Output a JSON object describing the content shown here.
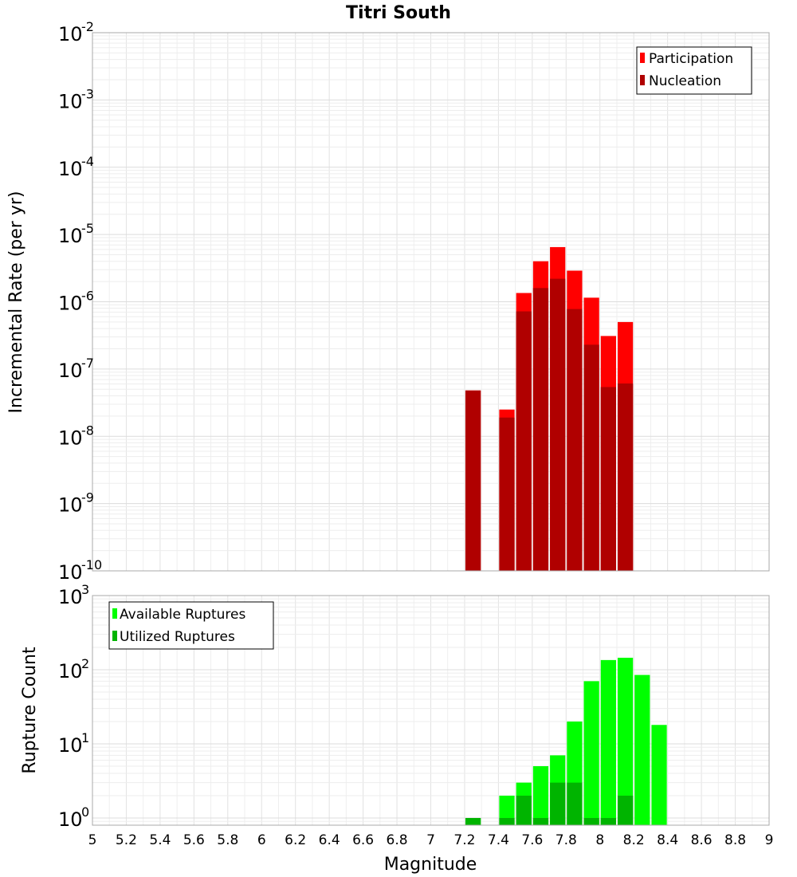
{
  "chart_data": [
    {
      "type": "bar",
      "title": "Titri South",
      "ylabel": "Incremental Rate (per yr)",
      "xlabel": "",
      "y_scale": "log",
      "ylim": [
        1e-10,
        0.01
      ],
      "xlim": [
        5,
        9
      ],
      "bin_width": 0.1,
      "grid": true,
      "legend_position": "top-right",
      "series": [
        {
          "name": "Participation",
          "color": "#ff0000",
          "x": [
            7.25,
            7.45,
            7.55,
            7.65,
            7.75,
            7.85,
            7.95,
            8.05,
            8.15
          ],
          "values": [
            4.8e-08,
            2.5e-08,
            1.35e-06,
            4e-06,
            6.5e-06,
            2.9e-06,
            1.15e-06,
            3.1e-07,
            5e-07
          ]
        },
        {
          "name": "Nucleation",
          "color": "#b00000",
          "x": [
            7.25,
            7.45,
            7.55,
            7.65,
            7.75,
            7.85,
            7.95,
            8.05,
            8.15
          ],
          "values": [
            4.8e-08,
            1.9e-08,
            7.2e-07,
            1.6e-06,
            2.2e-06,
            7.8e-07,
            2.3e-07,
            5.4e-08,
            6.1e-08
          ]
        }
      ]
    },
    {
      "type": "bar",
      "title": "",
      "ylabel": "Rupture Count",
      "xlabel": "Magnitude",
      "y_scale": "log",
      "ylim": [
        0.8,
        1000
      ],
      "xlim": [
        5,
        9
      ],
      "bin_width": 0.1,
      "grid": true,
      "legend_position": "top-left",
      "series": [
        {
          "name": "Available Ruptures",
          "color": "#00ff00",
          "x": [
            7.25,
            7.45,
            7.55,
            7.65,
            7.75,
            7.85,
            7.95,
            8.05,
            8.15,
            8.25,
            8.35
          ],
          "values": [
            1,
            2,
            3,
            5,
            7,
            20,
            70,
            135,
            145,
            85,
            18
          ]
        },
        {
          "name": "Utilized Ruptures",
          "color": "#00b400",
          "x": [
            7.25,
            7.45,
            7.55,
            7.65,
            7.75,
            7.85,
            7.95,
            8.05,
            8.15
          ],
          "values": [
            1,
            1,
            2,
            1,
            3,
            3,
            1,
            1,
            2
          ]
        }
      ]
    }
  ],
  "x_ticks": [
    "5",
    "5.2",
    "5.4",
    "5.6",
    "5.8",
    "6",
    "6.2",
    "6.4",
    "6.6",
    "6.8",
    "7",
    "7.2",
    "7.4",
    "7.6",
    "7.8",
    "8",
    "8.2",
    "8.4",
    "8.6",
    "8.8",
    "9"
  ],
  "y_ticks_top": [
    {
      "base": "10",
      "exp": "-10"
    },
    {
      "base": "10",
      "exp": "-9"
    },
    {
      "base": "10",
      "exp": "-8"
    },
    {
      "base": "10",
      "exp": "-7"
    },
    {
      "base": "10",
      "exp": "-6"
    },
    {
      "base": "10",
      "exp": "-5"
    },
    {
      "base": "10",
      "exp": "-4"
    },
    {
      "base": "10",
      "exp": "-3"
    },
    {
      "base": "10",
      "exp": "-2"
    }
  ],
  "y_ticks_bottom": [
    {
      "base": "10",
      "exp": "0"
    },
    {
      "base": "10",
      "exp": "1"
    },
    {
      "base": "10",
      "exp": "2"
    },
    {
      "base": "10",
      "exp": "3"
    }
  ]
}
